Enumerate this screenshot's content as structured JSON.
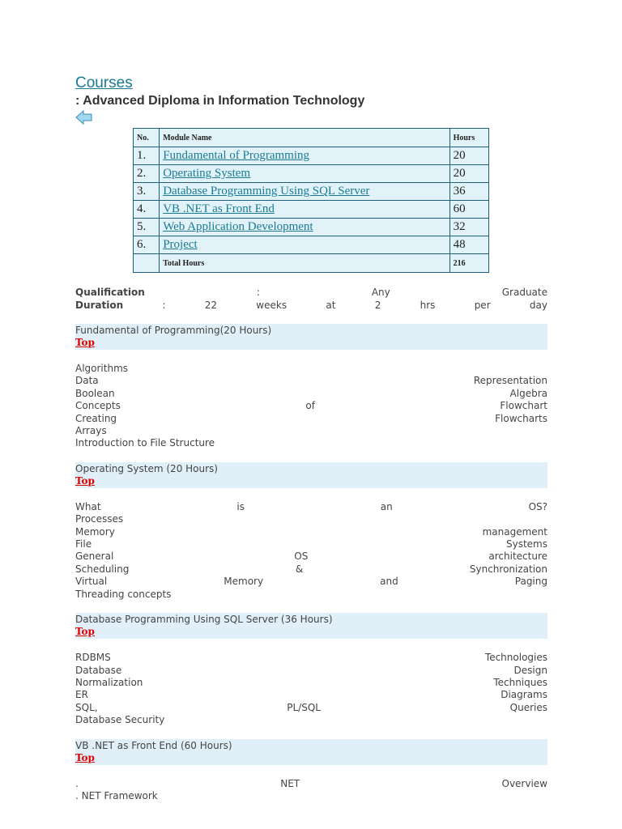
{
  "header": {
    "title": "Courses",
    "subtitle": ": Advanced Diploma in Information Technology"
  },
  "table": {
    "columns": [
      "No.",
      "Module Name",
      "Hours"
    ],
    "rows": [
      [
        "1.",
        "Fundamental of Programming",
        "20"
      ],
      [
        "2.",
        "Operating System",
        "20"
      ],
      [
        "3.",
        "Database Programming Using SQL Server",
        "36"
      ],
      [
        "4.",
        "VB .NET as Front End",
        "60"
      ],
      [
        "5.",
        "Web Application Development",
        "32"
      ],
      [
        "6.",
        "Project",
        "48"
      ]
    ],
    "total": {
      "label": "Total Hours",
      "value": "216"
    }
  },
  "info": [
    {
      "label": "Qualification",
      "value": ": Any Graduate"
    },
    {
      "label": "Duration",
      "value": ": 22 weeks at 2 hrs per day"
    }
  ],
  "sections": [
    {
      "title": "Fundamental of Programming(20 Hours)",
      "link": "Top",
      "items": [
        "Algorithms",
        "Data Representation",
        "Boolean Algebra",
        "Concepts of Flowchart",
        "Creating Flowcharts",
        "Arrays",
        "Introduction to File Structure"
      ]
    },
    {
      "title": "Operating System (20 Hours)",
      "link": "Top",
      "items": [
        "What is an OS?",
        "Processes",
        "Memory management",
        "File Systems",
        "General OS architecture",
        "Scheduling & Synchronization",
        "Virtual Memory and Paging",
        "Threading concepts"
      ]
    },
    {
      "title": "Database Programming Using SQL Server (36 Hours)",
      "link": "Top",
      "items": [
        "RDBMS Technologies",
        "Database Design",
        "Normalization Techniques",
        "ER Diagrams",
        "SQL, PL/SQL Queries",
        "Database Security"
      ]
    },
    {
      "title": "VB .NET as Front End (60 Hours)",
      "link": "Top",
      "items": [
        ". NET Overview",
        ". NET Framework"
      ]
    }
  ]
}
